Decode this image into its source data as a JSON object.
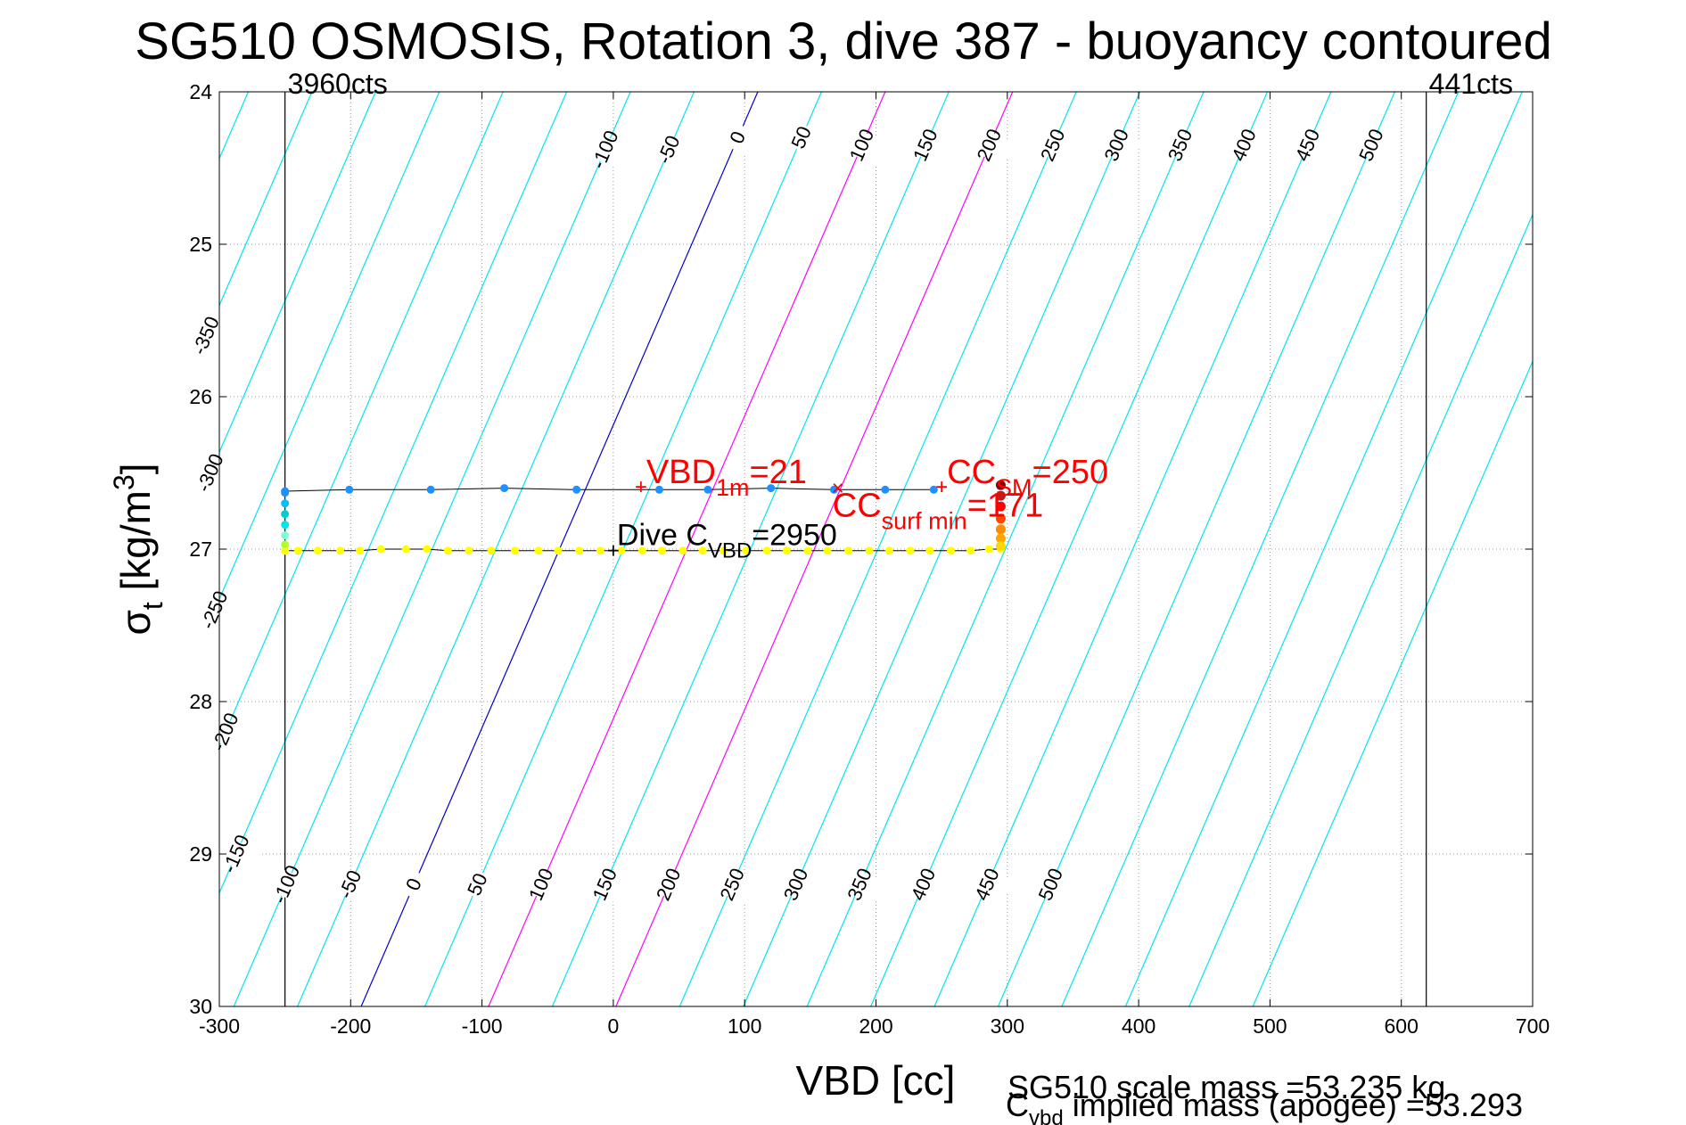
{
  "chart_data": {
    "type": "scatter",
    "title": "SG510 OSMOSIS, Rotation 3, dive 387 - buoyancy contoured",
    "xlabel": "VBD [cc]",
    "ylabel_main": "σ",
    "ylabel_sub": "t",
    "ylabel_units": " [kg/m",
    "ylabel_sup": "3",
    "ylabel_close": "]",
    "xlim": [
      -300,
      700
    ],
    "ylim": [
      24,
      30
    ],
    "y_reversed": true,
    "grid": "dotted",
    "x_ticks": [
      -300,
      -200,
      -100,
      0,
      100,
      200,
      300,
      400,
      500,
      600,
      700
    ],
    "x_tick_labels": [
      "-300",
      "-200",
      "-100",
      "0",
      "100",
      "200",
      "300",
      "400",
      "500",
      "600",
      "700"
    ],
    "y_ticks": [
      24,
      25,
      26,
      27,
      28,
      29,
      30
    ],
    "y_tick_labels": [
      "24",
      "25",
      "26",
      "27",
      "28",
      "29",
      "30"
    ],
    "vertical_limits": [
      {
        "x": -250,
        "label": "3960cts",
        "label_side": "right"
      },
      {
        "x": 619,
        "label": "441cts",
        "label_side": "right"
      }
    ],
    "contours": {
      "levels": [
        -550,
        -500,
        -450,
        -400,
        -350,
        -300,
        -250,
        -200,
        -150,
        -100,
        -50,
        0,
        50,
        100,
        150,
        200,
        250,
        300,
        350,
        400,
        450,
        500,
        550,
        600,
        650,
        700
      ],
      "colors": {
        "default": "#00e5ee",
        "zero": "#0000cc",
        "highlight": "#ff00ff"
      },
      "highlight_levels": [
        100,
        200
      ],
      "vbd_at_sigma24_for_zero": 110,
      "vbd_at_sigma30_for_zero": -192,
      "top_labels": [
        "-350",
        "-300",
        "-250",
        "-200",
        "-150",
        "-100",
        "-50",
        "0",
        "50",
        "100",
        "150",
        "200",
        "250",
        "300",
        "350",
        "400",
        "450",
        "500"
      ],
      "top_label_levels": [
        -350,
        -300,
        -250,
        -200,
        -150,
        -100,
        -50,
        0,
        50,
        100,
        150,
        200,
        250,
        300,
        350,
        400,
        450,
        500
      ],
      "top_label_sigmas": [
        25.6,
        26.5,
        27.4,
        28.2,
        29.0,
        24.38,
        24.38,
        24.3,
        24.3,
        24.35,
        24.35,
        24.35,
        24.35,
        24.35,
        24.35,
        24.35,
        24.35,
        24.35
      ],
      "bottom_labels": [
        "-100",
        "-50",
        "0",
        "50",
        "100",
        "150",
        "200",
        "250",
        "300",
        "350",
        "400",
        "450",
        "500"
      ],
      "bottom_label_levels": [
        -100,
        -50,
        0,
        50,
        100,
        150,
        200,
        250,
        300,
        350,
        400,
        450,
        500
      ],
      "bottom_label_sigma": 29.2
    },
    "series": [
      {
        "name": "upper-leg",
        "color": "#1e90ff",
        "x": [
          -250,
          -201,
          -139,
          -83,
          -28,
          35,
          72,
          120,
          168,
          207,
          244
        ],
        "y": [
          26.62,
          26.61,
          26.61,
          26.6,
          26.61,
          26.61,
          26.61,
          26.6,
          26.61,
          26.61,
          26.61
        ]
      },
      {
        "name": "lower-leg",
        "color": "#ffff00",
        "x": [
          -250,
          -240,
          -225,
          -208,
          -193,
          -177,
          -158,
          -142,
          -126,
          -110,
          -93,
          -75,
          -57,
          -42,
          -26,
          -10,
          6,
          22,
          37,
          53,
          68,
          84,
          101,
          117,
          132,
          148,
          163,
          179,
          195,
          210,
          226,
          241,
          257,
          272,
          286,
          295
        ],
        "y": [
          27.01,
          27.01,
          27.01,
          27.01,
          27.01,
          27.0,
          27.0,
          27.0,
          27.01,
          27.01,
          27.01,
          27.01,
          27.01,
          27.01,
          27.01,
          27.01,
          27.01,
          27.01,
          27.01,
          27.01,
          27.01,
          27.01,
          27.01,
          27.01,
          27.01,
          27.01,
          27.01,
          27.01,
          27.01,
          27.01,
          27.01,
          27.01,
          27.01,
          27.01,
          27.0,
          27.0
        ]
      },
      {
        "name": "surface-column",
        "colors": [
          "#8b0000",
          "#b22222",
          "#ff0000",
          "#ff4500",
          "#ff8c00",
          "#ffa500",
          "#ffd700"
        ],
        "x": [
          295,
          295,
          295,
          295,
          295,
          295,
          295
        ],
        "y": [
          26.58,
          26.65,
          26.72,
          26.8,
          26.87,
          26.93,
          26.98
        ]
      },
      {
        "name": "left-column",
        "colors": [
          "#1e90ff",
          "#00bfff",
          "#00ced1",
          "#00e5ee",
          "#7fffd4",
          "#adff2f"
        ],
        "x": [
          -250,
          -250,
          -250,
          -250,
          -250,
          -250
        ],
        "y": [
          26.63,
          26.7,
          26.77,
          26.84,
          26.91,
          26.97
        ]
      }
    ],
    "annotations": [
      {
        "text": "VBD",
        "sub": "1m",
        "tail": "=21",
        "color": "#ff0000",
        "marker": "+",
        "x": 21,
        "y": 26.59
      },
      {
        "text": "CC",
        "sub": "SM",
        "tail": "=250",
        "color": "#ff0000",
        "marker": "+",
        "x": 250,
        "y": 26.59
      },
      {
        "text": "CC",
        "sub": "surf min",
        "tail": "=171",
        "color": "#ff0000",
        "marker": "×",
        "x": 171,
        "y": 26.6
      },
      {
        "text": "Dive C",
        "sub": "VBD",
        "tail": "=2950",
        "color": "#000000",
        "marker": "+",
        "x": 0,
        "y": 27.01
      }
    ],
    "footer": {
      "line1": "SG510 scale mass =53.235 kg",
      "line2_main": "C",
      "line2_sub": "vbd",
      "line2_tail": " implied mass (apogee) =53.293"
    }
  }
}
